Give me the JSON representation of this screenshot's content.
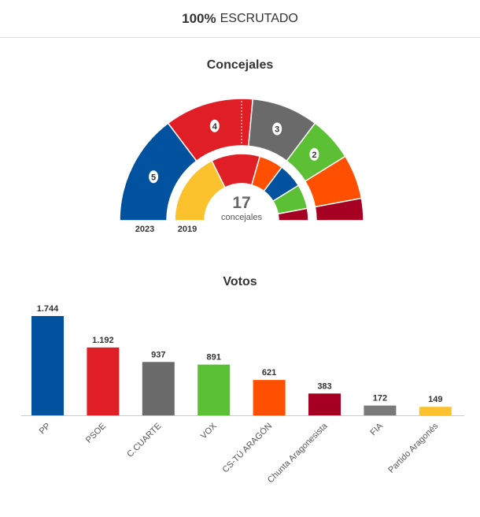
{
  "header": {
    "percent": "100%",
    "label": "ESCRUTADO"
  },
  "seats_chart": {
    "title": "Concejales",
    "total": "17",
    "total_label": "concejales",
    "outer_label": "2023",
    "inner_label": "2019",
    "outer": [
      {
        "party": "PP",
        "seats": 5,
        "color": "#00519e",
        "show": true
      },
      {
        "party": "PSOE",
        "seats": 4,
        "color": "#e01e25",
        "show": true
      },
      {
        "party": "C.CUARTE",
        "seats": 3,
        "color": "#6a6a6a",
        "show": true
      },
      {
        "party": "VOX",
        "seats": 2,
        "color": "#5bc033",
        "show": true
      },
      {
        "party": "CS-TÚ ARAGÓN",
        "seats": 2,
        "color": "#fe5000",
        "show": false
      },
      {
        "party": "Chunta Aragonesista",
        "seats": 1,
        "color": "#a50021",
        "show": false
      }
    ],
    "inner": [
      {
        "party": "Partido Aragonés",
        "seats": 6,
        "color": "#fbc22d"
      },
      {
        "party": "PSOE",
        "seats": 4,
        "color": "#e01e25"
      },
      {
        "party": "CS",
        "seats": 2,
        "color": "#fe5000"
      },
      {
        "party": "PP",
        "seats": 2,
        "color": "#00519e"
      },
      {
        "party": "VOX",
        "seats": 2,
        "color": "#5bc033"
      },
      {
        "party": "Chunta Aragonesista",
        "seats": 1,
        "color": "#a50021"
      }
    ]
  },
  "chart_data": {
    "type": "bar",
    "title": "Votos",
    "categories": [
      "PP",
      "PSOE",
      "C.CUARTE",
      "VOX",
      "CS-TÚ ARAGÓN",
      "Chunta Aragonesista",
      "FIA",
      "Partido Aragonés"
    ],
    "values": [
      1744,
      1192,
      937,
      891,
      621,
      383,
      172,
      149
    ],
    "value_labels": [
      "1.744",
      "1.192",
      "937",
      "891",
      "621",
      "383",
      "172",
      "149"
    ],
    "colors": [
      "#00519e",
      "#e01e25",
      "#6a6a6a",
      "#5bc033",
      "#fe5000",
      "#a50021",
      "#7a7a7a",
      "#fbc22d"
    ],
    "ylim": [
      0,
      1744
    ]
  }
}
